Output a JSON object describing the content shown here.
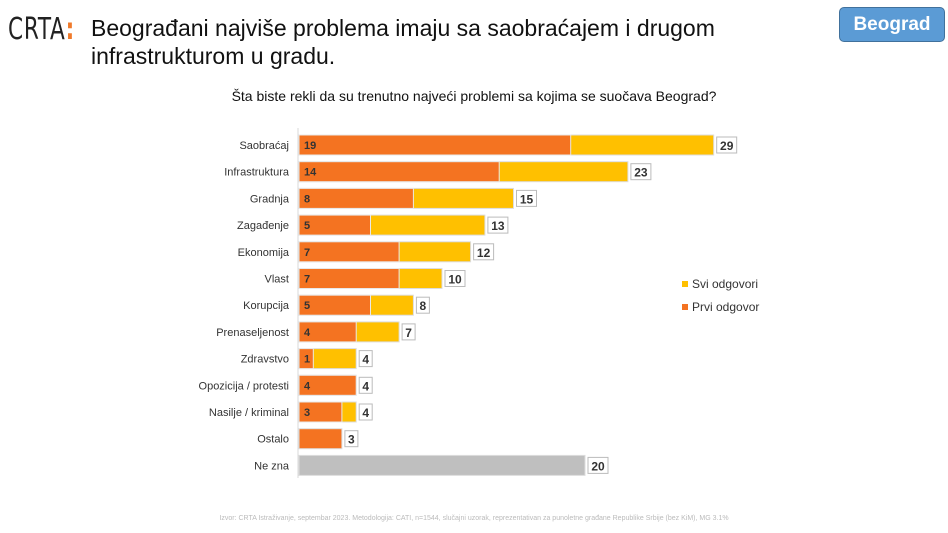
{
  "header": {
    "logo": "CRTA",
    "title": "Beograđani najviše problema imaju sa saobraćajem i drugom infrastrukturom u gradu.",
    "badge": "Beograd"
  },
  "chart_data": {
    "type": "bar",
    "orientation": "horizontal",
    "stacked": "overlap",
    "title": "Šta biste rekli da su trenutno najveći problemi sa kojima se suočava Beograd?",
    "categories": [
      "Saobraćaj",
      "Infrastruktura",
      "Gradnja",
      "Zagađenje",
      "Ekonomija",
      "Vlast",
      "Korupcija",
      "Prenaseljenost",
      "Zdravstvo",
      "Opozicija / protesti",
      "Nasilje / kriminal",
      "Ostalo",
      "Ne zna"
    ],
    "series": [
      {
        "name": "Svi odgovori",
        "color": "#ffc000",
        "values": [
          29,
          23,
          15,
          13,
          12,
          10,
          8,
          7,
          4,
          4,
          4,
          3,
          20
        ]
      },
      {
        "name": "Prvi odgovor",
        "color": "#f47321",
        "values": [
          19,
          14,
          8,
          5,
          7,
          7,
          5,
          4,
          1,
          4,
          3,
          null,
          null
        ]
      }
    ],
    "ne_zna_color": "#bfbfbf",
    "legend_position": "right",
    "grid": false
  },
  "footer": {
    "source": "Izvor: CRTA Istraživanje, septembar 2023. Metodologija: CATI, n=1544, slučajni uzorak, reprezentativan za punoletne građane Republike Srbije (bez KiM), MG 3.1%"
  }
}
